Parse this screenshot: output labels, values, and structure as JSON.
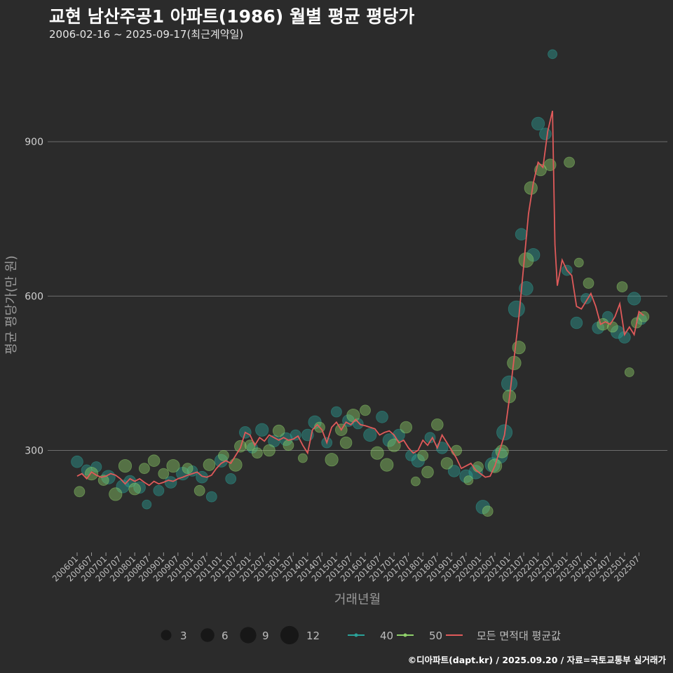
{
  "header": {
    "title": "교현 남산주공1 아파트(1986) 월별 평균 평당가",
    "subtitle": "2006-02-16 ~ 2025-09-17(최근계약일)"
  },
  "caption": "©디아파트(dapt.kr) / 2025.09.20 / 자료=국토교통부 실거래가",
  "colors": {
    "background": "#2b2b2b",
    "gridline": "#6e6e6e",
    "series_40": "#2aa198",
    "series_50": "#8fd16a",
    "average_line": "#e05a5a"
  },
  "chart_data": {
    "type": "scatter",
    "xlabel": "거래년월",
    "ylabel": "평균 평당가(만 원)",
    "ylim": [
      110,
      1080
    ],
    "yticks": [
      300,
      600,
      900
    ],
    "grid": true,
    "x_tick_labels": [
      "200601",
      "200607",
      "200701",
      "200707",
      "200801",
      "200807",
      "200901",
      "200907",
      "201001",
      "201007",
      "201101",
      "201107",
      "201201",
      "201207",
      "201301",
      "201307",
      "201401",
      "201407",
      "201501",
      "201507",
      "201601",
      "201607",
      "201701",
      "201707",
      "201801",
      "201807",
      "201901",
      "201907",
      "202001",
      "202007",
      "202101",
      "202107",
      "202201",
      "202207",
      "202301",
      "202307",
      "202401",
      "202407",
      "202501",
      "202507"
    ],
    "legend": {
      "position": "bottom",
      "size_title": "",
      "sizes": [
        3,
        6,
        9,
        12
      ],
      "series": [
        {
          "name": "40",
          "color": "#2aa198"
        },
        {
          "name": "50",
          "color": "#8fd16a"
        },
        {
          "name": "모든 면적대 평균값",
          "color": "#e05a5a"
        }
      ]
    },
    "average_series": {
      "name": "모든 면적대 평균값",
      "points": [
        [
          "2006-01",
          250
        ],
        [
          "2006-03",
          255
        ],
        [
          "2006-05",
          245
        ],
        [
          "2006-07",
          258
        ],
        [
          "2006-09",
          252
        ],
        [
          "2006-11",
          248
        ],
        [
          "2007-01",
          250
        ],
        [
          "2007-03",
          255
        ],
        [
          "2007-05",
          252
        ],
        [
          "2007-07",
          245
        ],
        [
          "2007-09",
          235
        ],
        [
          "2007-11",
          245
        ],
        [
          "2008-01",
          240
        ],
        [
          "2008-03",
          245
        ],
        [
          "2008-05",
          238
        ],
        [
          "2008-07",
          232
        ],
        [
          "2008-09",
          240
        ],
        [
          "2008-11",
          235
        ],
        [
          "2009-01",
          238
        ],
        [
          "2009-03",
          242
        ],
        [
          "2009-05",
          240
        ],
        [
          "2009-07",
          245
        ],
        [
          "2009-09",
          248
        ],
        [
          "2009-11",
          252
        ],
        [
          "2010-01",
          255
        ],
        [
          "2010-03",
          258
        ],
        [
          "2010-05",
          250
        ],
        [
          "2010-07",
          248
        ],
        [
          "2010-09",
          252
        ],
        [
          "2010-11",
          265
        ],
        [
          "2011-01",
          275
        ],
        [
          "2011-03",
          280
        ],
        [
          "2011-05",
          275
        ],
        [
          "2011-07",
          290
        ],
        [
          "2011-09",
          305
        ],
        [
          "2011-11",
          335
        ],
        [
          "2012-01",
          330
        ],
        [
          "2012-03",
          310
        ],
        [
          "2012-05",
          325
        ],
        [
          "2012-07",
          318
        ],
        [
          "2012-09",
          330
        ],
        [
          "2012-11",
          325
        ],
        [
          "2013-01",
          320
        ],
        [
          "2013-03",
          325
        ],
        [
          "2013-05",
          320
        ],
        [
          "2013-07",
          322
        ],
        [
          "2013-09",
          328
        ],
        [
          "2013-11",
          310
        ],
        [
          "2014-01",
          295
        ],
        [
          "2014-03",
          340
        ],
        [
          "2014-05",
          350
        ],
        [
          "2014-07",
          340
        ],
        [
          "2014-09",
          315
        ],
        [
          "2014-11",
          345
        ],
        [
          "2015-01",
          355
        ],
        [
          "2015-03",
          340
        ],
        [
          "2015-05",
          355
        ],
        [
          "2015-07",
          350
        ],
        [
          "2015-09",
          360
        ],
        [
          "2015-11",
          350
        ],
        [
          "2016-01",
          348
        ],
        [
          "2016-03",
          345
        ],
        [
          "2016-05",
          342
        ],
        [
          "2016-07",
          330
        ],
        [
          "2016-09",
          335
        ],
        [
          "2016-11",
          338
        ],
        [
          "2017-01",
          330
        ],
        [
          "2017-03",
          315
        ],
        [
          "2017-05",
          320
        ],
        [
          "2017-07",
          305
        ],
        [
          "2017-09",
          295
        ],
        [
          "2017-11",
          300
        ],
        [
          "2018-01",
          320
        ],
        [
          "2018-03",
          310
        ],
        [
          "2018-05",
          325
        ],
        [
          "2018-07",
          305
        ],
        [
          "2018-09",
          330
        ],
        [
          "2018-11",
          315
        ],
        [
          "2019-01",
          300
        ],
        [
          "2019-03",
          285
        ],
        [
          "2019-05",
          265
        ],
        [
          "2019-07",
          270
        ],
        [
          "2019-09",
          275
        ],
        [
          "2019-11",
          262
        ],
        [
          "2020-01",
          255
        ],
        [
          "2020-03",
          248
        ],
        [
          "2020-05",
          250
        ],
        [
          "2020-07",
          270
        ],
        [
          "2020-09",
          300
        ],
        [
          "2020-11",
          330
        ],
        [
          "2021-01",
          400
        ],
        [
          "2021-03",
          480
        ],
        [
          "2021-05",
          560
        ],
        [
          "2021-07",
          660
        ],
        [
          "2021-09",
          760
        ],
        [
          "2021-11",
          820
        ],
        [
          "2022-01",
          860
        ],
        [
          "2022-03",
          850
        ],
        [
          "2022-05",
          920
        ],
        [
          "2022-07",
          960
        ],
        [
          "2022-08",
          700
        ],
        [
          "2022-09",
          620
        ],
        [
          "2022-11",
          670
        ],
        [
          "2023-01",
          650
        ],
        [
          "2023-03",
          640
        ],
        [
          "2023-05",
          580
        ],
        [
          "2023-07",
          575
        ],
        [
          "2023-09",
          590
        ],
        [
          "2023-11",
          605
        ],
        [
          "2024-01",
          580
        ],
        [
          "2024-03",
          545
        ],
        [
          "2024-05",
          550
        ],
        [
          "2024-07",
          545
        ],
        [
          "2024-09",
          560
        ],
        [
          "2024-11",
          585
        ],
        [
          "2025-01",
          525
        ],
        [
          "2025-03",
          540
        ],
        [
          "2025-05",
          525
        ],
        [
          "2025-07",
          570
        ],
        [
          "2025-09",
          562
        ]
      ]
    },
    "scatter_series": [
      {
        "name": "40",
        "points": [
          [
            "2006-01",
            278,
            4
          ],
          [
            "2006-05",
            262,
            3
          ],
          [
            "2006-09",
            268,
            3
          ],
          [
            "2007-02",
            248,
            6
          ],
          [
            "2007-08",
            230,
            5
          ],
          [
            "2007-11",
            240,
            4
          ],
          [
            "2008-03",
            228,
            4
          ],
          [
            "2008-06",
            195,
            2
          ],
          [
            "2008-11",
            222,
            3
          ],
          [
            "2009-04",
            238,
            4
          ],
          [
            "2009-09",
            255,
            5
          ],
          [
            "2010-01",
            260,
            3
          ],
          [
            "2010-05",
            248,
            4
          ],
          [
            "2010-09",
            210,
            3
          ],
          [
            "2011-01",
            280,
            5
          ],
          [
            "2011-05",
            245,
            3
          ],
          [
            "2011-11",
            335,
            4
          ],
          [
            "2012-02",
            305,
            3
          ],
          [
            "2012-06",
            340,
            5
          ],
          [
            "2012-11",
            318,
            4
          ],
          [
            "2013-04",
            322,
            5
          ],
          [
            "2013-08",
            330,
            3
          ],
          [
            "2014-01",
            330,
            4
          ],
          [
            "2014-04",
            355,
            5
          ],
          [
            "2014-09",
            315,
            3
          ],
          [
            "2015-01",
            375,
            3
          ],
          [
            "2015-06",
            358,
            4
          ],
          [
            "2015-10",
            352,
            3
          ],
          [
            "2016-03",
            330,
            5
          ],
          [
            "2016-08",
            365,
            4
          ],
          [
            "2016-11",
            320,
            5
          ],
          [
            "2017-03",
            330,
            4
          ],
          [
            "2017-08",
            290,
            3
          ],
          [
            "2017-11",
            280,
            5
          ],
          [
            "2018-04",
            325,
            3
          ],
          [
            "2018-09",
            305,
            4
          ],
          [
            "2019-02",
            260,
            4
          ],
          [
            "2019-07",
            250,
            5
          ],
          [
            "2019-11",
            258,
            6
          ],
          [
            "2020-02",
            190,
            6
          ],
          [
            "2020-06",
            272,
            7
          ],
          [
            "2020-09",
            290,
            8
          ],
          [
            "2020-11",
            335,
            8
          ],
          [
            "2021-01",
            430,
            8
          ],
          [
            "2021-04",
            575,
            9
          ],
          [
            "2021-06",
            720,
            4
          ],
          [
            "2021-08",
            615,
            6
          ],
          [
            "2021-11",
            680,
            5
          ],
          [
            "2022-01",
            935,
            5
          ],
          [
            "2022-04",
            915,
            4
          ],
          [
            "2022-07",
            1070,
            2
          ],
          [
            "2023-01",
            650,
            3
          ],
          [
            "2023-05",
            548,
            4
          ],
          [
            "2023-09",
            595,
            3
          ],
          [
            "2024-02",
            538,
            4
          ],
          [
            "2024-06",
            560,
            3
          ],
          [
            "2024-10",
            530,
            5
          ],
          [
            "2025-01",
            520,
            4
          ],
          [
            "2025-05",
            595,
            5
          ],
          [
            "2025-08",
            555,
            3
          ]
        ]
      },
      {
        "name": "50",
        "points": [
          [
            "2006-02",
            220,
            3
          ],
          [
            "2006-07",
            255,
            5
          ],
          [
            "2006-12",
            242,
            3
          ],
          [
            "2007-05",
            215,
            5
          ],
          [
            "2007-09",
            270,
            5
          ],
          [
            "2008-01",
            225,
            4
          ],
          [
            "2008-05",
            265,
            3
          ],
          [
            "2008-09",
            280,
            4
          ],
          [
            "2009-01",
            255,
            3
          ],
          [
            "2009-05",
            270,
            5
          ],
          [
            "2009-11",
            265,
            3
          ],
          [
            "2010-04",
            222,
            3
          ],
          [
            "2010-08",
            272,
            4
          ],
          [
            "2011-02",
            290,
            3
          ],
          [
            "2011-07",
            272,
            5
          ],
          [
            "2011-09",
            308,
            4
          ],
          [
            "2012-01",
            310,
            3
          ],
          [
            "2012-04",
            295,
            3
          ],
          [
            "2012-09",
            300,
            4
          ],
          [
            "2013-01",
            338,
            4
          ],
          [
            "2013-05",
            310,
            3
          ],
          [
            "2013-11",
            285,
            2
          ],
          [
            "2014-06",
            345,
            3
          ],
          [
            "2014-11",
            282,
            5
          ],
          [
            "2015-03",
            340,
            4
          ],
          [
            "2015-05",
            315,
            4
          ],
          [
            "2015-08",
            368,
            5
          ],
          [
            "2016-01",
            378,
            3
          ],
          [
            "2016-06",
            295,
            5
          ],
          [
            "2016-10",
            272,
            5
          ],
          [
            "2017-01",
            310,
            5
          ],
          [
            "2017-06",
            345,
            4
          ],
          [
            "2017-10",
            240,
            2
          ],
          [
            "2018-01",
            290,
            3
          ],
          [
            "2018-03",
            258,
            4
          ],
          [
            "2018-07",
            350,
            4
          ],
          [
            "2018-11",
            275,
            4
          ],
          [
            "2019-03",
            300,
            3
          ],
          [
            "2019-08",
            242,
            2
          ],
          [
            "2019-12",
            268,
            3
          ],
          [
            "2020-04",
            182,
            3
          ],
          [
            "2020-07",
            270,
            6
          ],
          [
            "2020-10",
            298,
            5
          ],
          [
            "2021-01",
            405,
            5
          ],
          [
            "2021-03",
            470,
            6
          ],
          [
            "2021-05",
            500,
            5
          ],
          [
            "2021-08",
            670,
            7
          ],
          [
            "2021-10",
            810,
            5
          ],
          [
            "2022-02",
            845,
            4
          ],
          [
            "2022-06",
            855,
            4
          ],
          [
            "2023-02",
            860,
            3
          ],
          [
            "2023-06",
            665,
            2
          ],
          [
            "2023-10",
            625,
            3
          ],
          [
            "2024-04",
            545,
            4
          ],
          [
            "2024-08",
            540,
            3
          ],
          [
            "2024-12",
            618,
            3
          ],
          [
            "2025-03",
            452,
            2
          ],
          [
            "2025-06",
            548,
            3
          ],
          [
            "2025-09",
            560,
            3
          ]
        ]
      }
    ]
  }
}
